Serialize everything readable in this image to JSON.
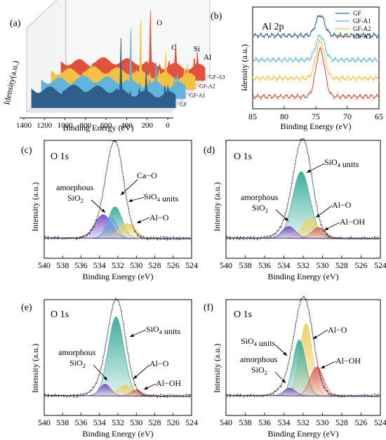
{
  "chart_data": [
    {
      "panel": "(a)",
      "type": "line",
      "xlabel": "Binding Energy (eV)",
      "ylabel": "Idensity(a.u.)",
      "xlim": [
        1400,
        0
      ],
      "x_ticks": [
        1400,
        1200,
        1000,
        800,
        600,
        400,
        200,
        0
      ],
      "series": [
        {
          "name": "GF",
          "color": "#2e5f8c"
        },
        {
          "name": "GF-A1",
          "color": "#60b5df"
        },
        {
          "name": "GF-A2",
          "color": "#f5c143"
        },
        {
          "name": "GF-A3",
          "color": "#e0523d"
        }
      ],
      "peaks": [
        {
          "label": "O",
          "x": 531
        },
        {
          "label": "C",
          "x": 285
        },
        {
          "label": "Si",
          "x": 103
        },
        {
          "label": "Al",
          "x": 74
        }
      ]
    },
    {
      "panel": "(b)",
      "type": "line",
      "title": "Al 2p",
      "xlabel": "Binding Energy (eV)",
      "ylabel": "Idensity (a.u.)",
      "xlim": [
        85,
        65
      ],
      "x_ticks": [
        85,
        80,
        75,
        70,
        65
      ],
      "legend_position": "top-right",
      "series": [
        {
          "name": "GF",
          "color": "#2e5f8c",
          "baseline": 0.72,
          "peak_height": 0.2
        },
        {
          "name": "GF-A1",
          "color": "#60b5df",
          "baseline": 0.48,
          "peak_height": 0.24
        },
        {
          "name": "GF-A2",
          "color": "#f5c143",
          "baseline": 0.3,
          "peak_height": 0.36
        },
        {
          "name": "GF-A3",
          "color": "#e0523d",
          "baseline": 0.12,
          "peak_height": 0.46
        }
      ],
      "peak_center": 74.3
    },
    {
      "panel": "(c)",
      "type": "line",
      "title": "O 1s",
      "xlabel": "Binding Energy (eV)",
      "ylabel": "Intensity (a.u.)",
      "xlim": [
        540,
        524
      ],
      "x_ticks": [
        540,
        538,
        536,
        534,
        532,
        530,
        528,
        526,
        524
      ],
      "components": [
        {
          "label": "amorphous SiO2",
          "center": 533.6,
          "height": 0.24,
          "width": 0.9,
          "color": "#7d52c9"
        },
        {
          "label": "SiO4 units",
          "center": 532.3,
          "height": 0.32,
          "width": 0.75,
          "color": "#3fae9c"
        },
        {
          "label": "Ca-O",
          "center": 532.7,
          "height": 0.22,
          "width": 0.6,
          "color": "#6ea5e0"
        },
        {
          "label": "Al-O",
          "center": 531.0,
          "height": 0.15,
          "width": 0.9,
          "color": "#f0cf64"
        }
      ],
      "peak_max": 0.94,
      "peak_center": 532.3
    },
    {
      "panel": "(d)",
      "type": "line",
      "title": "O 1s",
      "xlabel": "Binding Energy (eV)",
      "ylabel": "Intensity (a.u.)",
      "xlim": [
        540,
        524
      ],
      "x_ticks": [
        540,
        538,
        536,
        534,
        532,
        530,
        528,
        526,
        524
      ],
      "components": [
        {
          "label": "amorphous SiO2",
          "center": 533.5,
          "height": 0.12,
          "width": 0.7,
          "color": "#7d52c9"
        },
        {
          "label": "SiO4 units",
          "center": 532.2,
          "height": 0.68,
          "width": 0.9,
          "color": "#3fae9c"
        },
        {
          "label": "Al-O",
          "center": 531.3,
          "height": 0.2,
          "width": 0.8,
          "color": "#f0cf64"
        },
        {
          "label": "Al-OH",
          "center": 530.4,
          "height": 0.11,
          "width": 0.7,
          "color": "#e06a66"
        }
      ],
      "peak_max": 0.96,
      "peak_center": 532.0
    },
    {
      "panel": "(e)",
      "type": "line",
      "title": "O 1s",
      "xlabel": "Binding Energy (eV)",
      "ylabel": "Intensity (a.u.)",
      "xlim": [
        540,
        524
      ],
      "x_ticks": [
        540,
        538,
        536,
        534,
        532,
        530,
        528,
        526,
        524
      ],
      "components": [
        {
          "label": "amorphous SiO2",
          "center": 533.4,
          "height": 0.12,
          "width": 0.6,
          "color": "#7d52c9"
        },
        {
          "label": "SiO4 units",
          "center": 532.2,
          "height": 0.82,
          "width": 0.85,
          "color": "#3fae9c"
        },
        {
          "label": "Al-O",
          "center": 531.2,
          "height": 0.11,
          "width": 0.8,
          "color": "#f0cf64"
        },
        {
          "label": "Al-OH",
          "center": 530.0,
          "height": 0.06,
          "width": 0.6,
          "color": "#e06a66"
        }
      ],
      "peak_max": 0.95,
      "peak_center": 532.1
    },
    {
      "panel": "(f)",
      "type": "line",
      "title": "O 1s",
      "xlabel": "Binding Energy (eV)",
      "ylabel": "Intensity (a.u.)",
      "xlim": [
        540,
        524
      ],
      "x_ticks": [
        540,
        538,
        536,
        534,
        532,
        530,
        528,
        526,
        524
      ],
      "components": [
        {
          "label": "amorphous SiO2",
          "center": 533.4,
          "height": 0.08,
          "width": 0.6,
          "color": "#7d52c9"
        },
        {
          "label": "SiO4 units",
          "center": 532.4,
          "height": 0.58,
          "width": 0.65,
          "color": "#3fae9c"
        },
        {
          "label": "Al-O",
          "center": 531.7,
          "height": 0.75,
          "width": 0.65,
          "color": "#f0cf64"
        },
        {
          "label": "Al-OH",
          "center": 530.6,
          "height": 0.3,
          "width": 0.7,
          "color": "#e06a66"
        }
      ],
      "peak_max": 0.97,
      "peak_center": 531.9
    }
  ]
}
